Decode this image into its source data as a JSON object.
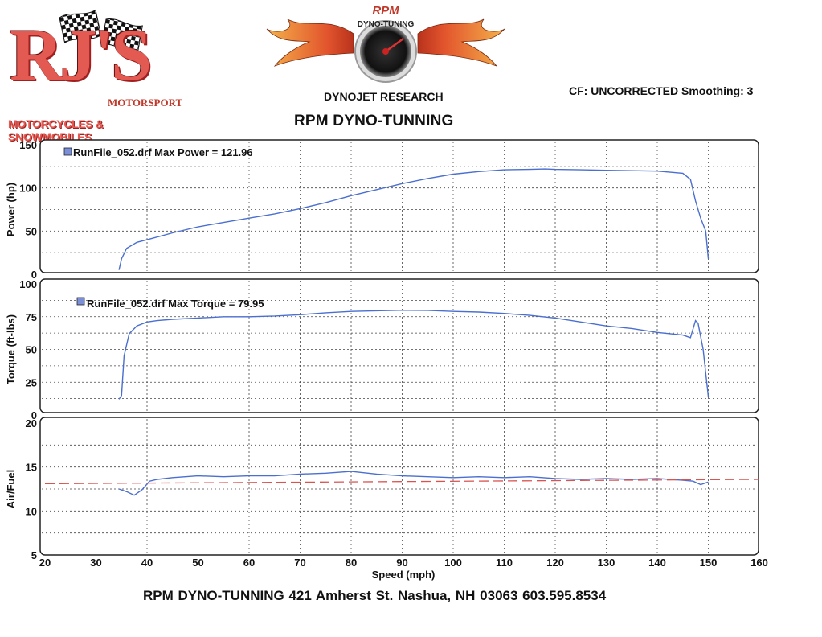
{
  "header": {
    "rj_logo_text": "RJ'S",
    "rj_motorsport": "MOTORSPORT",
    "rj_tagline": "MOTORCYCLES & SNOWMOBILES",
    "rpm_logo_top": "RPM",
    "rpm_logo_arc": "DYNO-TUNING",
    "dynojet": "DYNOJET RESEARCH",
    "title": "RPM DYNO-TUNNING",
    "cf": "CF: UNCORRECTED  Smoothing: 3"
  },
  "footer": "RPM DYNO-TUNNING  421 Amherst St. Nashua, NH 03063  603.595.8534",
  "colors": {
    "curve": "#4a6fd1",
    "afr_target": "#d9534f",
    "grid": "#444444"
  },
  "chart_data": [
    {
      "type": "line",
      "xlabel": "Speed (mph)",
      "ylabel": "Power (hp)",
      "xlim": [
        20,
        160
      ],
      "ylim": [
        0,
        150
      ],
      "x_ticks": [
        20,
        30,
        40,
        50,
        60,
        70,
        80,
        90,
        100,
        110,
        120,
        130,
        140,
        150,
        160
      ],
      "y_ticks": [
        0,
        50,
        100,
        150
      ],
      "grid": true,
      "legend": "RunFile_052.drf Max Power = 121.96",
      "series": [
        {
          "name": "RunFile_052.drf",
          "x": [
            34.5,
            35,
            36,
            38,
            40,
            45,
            50,
            55,
            60,
            65,
            70,
            75,
            80,
            85,
            90,
            95,
            100,
            105,
            110,
            115,
            118,
            120,
            125,
            130,
            135,
            140,
            145,
            146.5,
            147.5,
            148.5,
            149.5,
            150
          ],
          "y": [
            5,
            18,
            30,
            37,
            40,
            48,
            55,
            60,
            65,
            70,
            76,
            83,
            91,
            98,
            105,
            111,
            116,
            119,
            121,
            121.5,
            121.96,
            121.5,
            121,
            120.5,
            120,
            119.5,
            117,
            110,
            85,
            65,
            50,
            18
          ]
        }
      ]
    },
    {
      "type": "line",
      "ylabel": "Torque (ft-lbs)",
      "xlim": [
        20,
        160
      ],
      "ylim": [
        0,
        100
      ],
      "y_ticks": [
        0,
        25,
        50,
        75,
        100
      ],
      "grid": true,
      "legend": "RunFile_052.drf Max Torque = 79.95",
      "series": [
        {
          "name": "RunFile_052.drf",
          "x": [
            34.5,
            35,
            35.5,
            36.5,
            38,
            40,
            42,
            45,
            50,
            55,
            60,
            65,
            70,
            75,
            80,
            85,
            90,
            95,
            100,
            105,
            110,
            115,
            120,
            125,
            130,
            135,
            140,
            145,
            146.5,
            147.5,
            148,
            149,
            150
          ],
          "y": [
            12,
            15,
            45,
            62,
            68,
            71,
            72,
            73,
            74,
            75,
            75,
            75.5,
            76.5,
            78,
            79,
            79.5,
            79.95,
            79.8,
            79,
            78.5,
            77.5,
            76,
            74,
            71,
            68,
            66,
            63,
            61,
            59,
            72,
            70,
            50,
            14
          ]
        }
      ]
    },
    {
      "type": "line",
      "ylabel": "Air/Fuel",
      "xlim": [
        20,
        160
      ],
      "ylim": [
        5,
        20
      ],
      "y_ticks": [
        5,
        10,
        15,
        20
      ],
      "grid": true,
      "series": [
        {
          "name": "RunFile_052.drf",
          "x": [
            34.5,
            36,
            37.5,
            39,
            40.5,
            42,
            45,
            50,
            55,
            60,
            65,
            70,
            75,
            80,
            85,
            90,
            95,
            100,
            105,
            110,
            115,
            120,
            125,
            130,
            135,
            140,
            145,
            147,
            148.5,
            150
          ],
          "y": [
            12.5,
            12.2,
            11.8,
            12.4,
            13.4,
            13.6,
            13.8,
            14.0,
            13.9,
            14.0,
            14.0,
            14.2,
            14.3,
            14.5,
            14.2,
            14.0,
            13.9,
            13.8,
            13.9,
            13.8,
            13.9,
            13.7,
            13.6,
            13.7,
            13.6,
            13.7,
            13.5,
            13.4,
            13.0,
            13.3
          ]
        },
        {
          "name": "AFR reference",
          "style": "dashed",
          "x": [
            20,
            160
          ],
          "y": [
            13.1,
            13.6
          ]
        }
      ]
    }
  ]
}
